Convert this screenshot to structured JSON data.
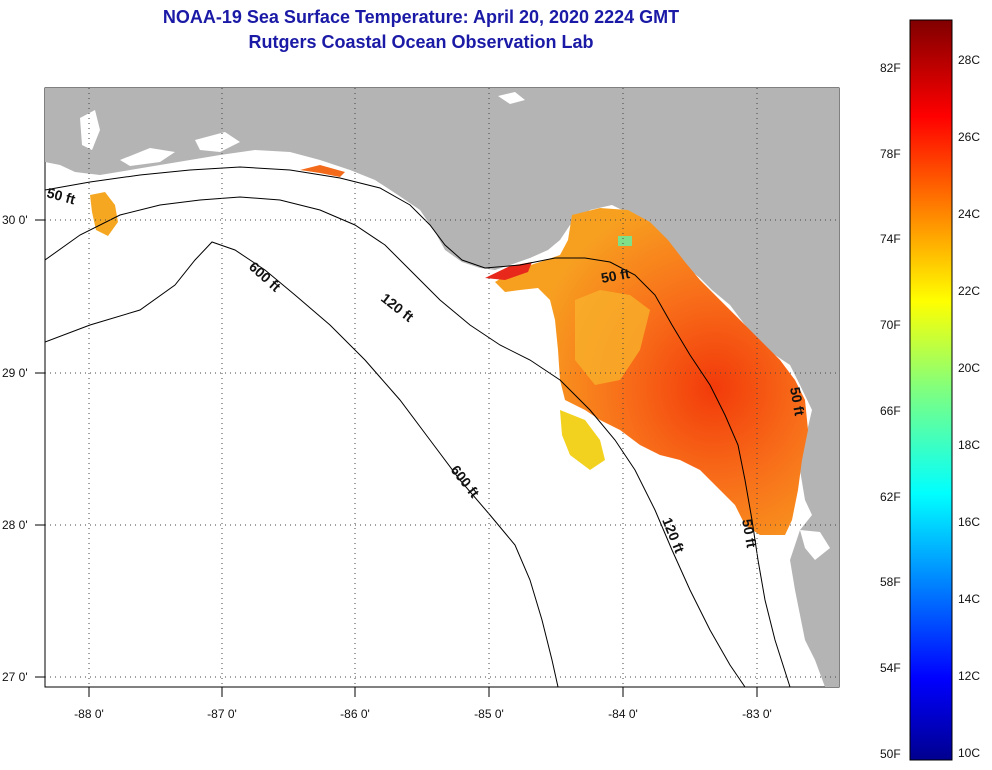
{
  "title": {
    "line1": "NOAA-19 Sea Surface Temperature:  April 20, 2020 2224 GMT",
    "line2": "Rutgers Coastal Ocean Observation Lab"
  },
  "map": {
    "lon_labels": [
      "-88 0'",
      "-87 0'",
      "-86 0'",
      "-85 0'",
      "-84 0'",
      "-83 0'"
    ],
    "lat_labels": [
      "30 0'",
      "29 0'",
      "28 0'",
      "27 0'"
    ],
    "contour_labels": [
      "50 ft",
      "600 ft",
      "120 ft",
      "50 ft",
      "600 ft",
      "120 ft",
      "50 ft",
      "50 ft"
    ]
  },
  "colorbar": {
    "fahrenheit": [
      "82F",
      "78F",
      "74F",
      "70F",
      "66F",
      "62F",
      "58F",
      "54F",
      "50F"
    ],
    "celsius": [
      "28C",
      "26C",
      "24C",
      "22C",
      "20C",
      "18C",
      "16C",
      "14C",
      "12C",
      "10C"
    ]
  },
  "colors": {
    "land": "#b4b4b4",
    "title": "#1a1aa6"
  }
}
